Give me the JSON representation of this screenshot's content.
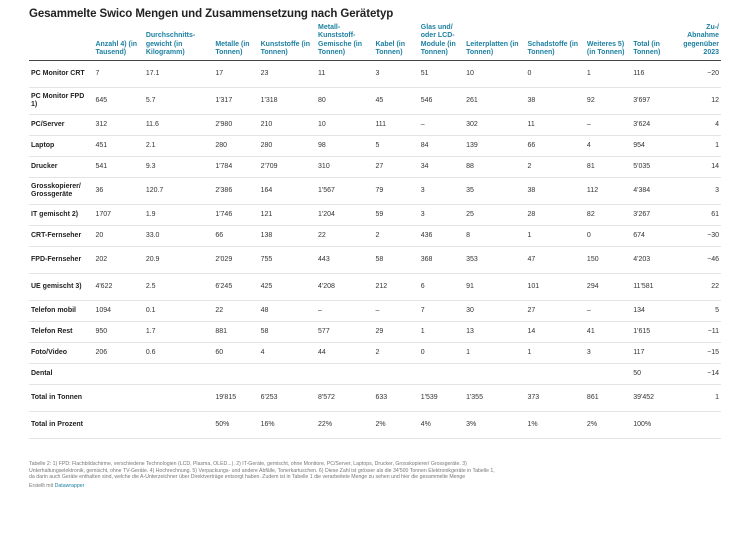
{
  "title": "Gesammelte Swico Mengen und Zusammensetzung nach Gerätetyp",
  "columns": [
    "",
    "Anzahl 4) (in Tausend)",
    "Durchschnitts-gewicht (in Kilogramm)",
    "Metalle (in Tonnen)",
    "Kunststoffe (in Tonnen)",
    "Metall-Kunststoff-Gemische (in Tonnen)",
    "Kabel (in Tonnen)",
    "Glas und/ oder LCD-Module (in Tonnen)",
    "Leiterplatten (in Tonnen)",
    "Schadstoffe (in Tonnen)",
    "Weiteres 5) (in Tonnen)",
    "Total (in Tonnen)",
    "Zu-/ Abnahme gegenüber 2023"
  ],
  "rows": [
    [
      "PC Monitor CRT",
      "7",
      "17.1",
      "17",
      "23",
      "11",
      "3",
      "51",
      "10",
      "0",
      "1",
      "116",
      "−20"
    ],
    [
      "PC Monitor FPD 1)",
      "645",
      "5.7",
      "1'317",
      "1'318",
      "80",
      "45",
      "546",
      "261",
      "38",
      "92",
      "3'697",
      "12"
    ],
    [
      "PC/Server",
      "312",
      "11.6",
      "2'980",
      "210",
      "10",
      "111",
      "–",
      "302",
      "11",
      "–",
      "3'624",
      "4"
    ],
    [
      "Laptop",
      "451",
      "2.1",
      "280",
      "280",
      "98",
      "5",
      "84",
      "139",
      "66",
      "4",
      "954",
      "1"
    ],
    [
      "Drucker",
      "541",
      "9.3",
      "1'784",
      "2'709",
      "310",
      "27",
      "34",
      "88",
      "2",
      "81",
      "5'035",
      "14"
    ],
    [
      "Grosskopierer/ Grossgeräte",
      "36",
      "120.7",
      "2'386",
      "164",
      "1'567",
      "79",
      "3",
      "35",
      "38",
      "112",
      "4'384",
      "3"
    ],
    [
      "IT gemischt 2)",
      "1707",
      "1.9",
      "1'746",
      "121",
      "1'204",
      "59",
      "3",
      "25",
      "28",
      "82",
      "3'267",
      "61"
    ],
    [
      "CRT-Fernseher",
      "20",
      "33.0",
      "66",
      "138",
      "22",
      "2",
      "436",
      "8",
      "1",
      "0",
      "674",
      "−30"
    ],
    [
      "FPD-Fernseher",
      "202",
      "20.9",
      "2'029",
      "755",
      "443",
      "58",
      "368",
      "353",
      "47",
      "150",
      "4'203",
      "−46"
    ],
    [
      "UE gemischt 3)",
      "4'622",
      "2.5",
      "6'245",
      "425",
      "4'208",
      "212",
      "6",
      "91",
      "101",
      "294",
      "11'581",
      "22"
    ],
    [
      "Telefon mobil",
      "1094",
      "0.1",
      "22",
      "48",
      "–",
      "–",
      "7",
      "30",
      "27",
      "–",
      "134",
      "5"
    ],
    [
      "Telefon Rest",
      "950",
      "1.7",
      "881",
      "58",
      "577",
      "29",
      "1",
      "13",
      "14",
      "41",
      "1'615",
      "−11"
    ],
    [
      "Foto/Video",
      "206",
      "0.6",
      "60",
      "4",
      "44",
      "2",
      "0",
      "1",
      "1",
      "3",
      "117",
      "−15"
    ],
    [
      "Dental",
      "",
      "",
      "",
      "",
      "",
      "",
      "",
      "",
      "",
      "",
      "50",
      "−14"
    ],
    [
      "Total in Tonnen",
      "",
      "",
      "19'815",
      "6'253",
      "8'572",
      "633",
      "1'539",
      "1'355",
      "373",
      "861",
      "39'452",
      "1"
    ],
    [
      "Total in Prozent",
      "",
      "",
      "50%",
      "16%",
      "22%",
      "2%",
      "4%",
      "3%",
      "1%",
      "2%",
      "100%",
      ""
    ]
  ],
  "footnote": "Tabelle 2: 1) FPD: Flachbildschirme, verschiedene Technologien (LCD, Plasma, OLED...). 2) IT-Geräte, gemischt, ohne Monitore, PC/Server, Laptops, Drucker, Grosskopierer/ Grossgeräte. 3) Unterhaltungselektronik, gemischt, ohne TV-Geräte. 4) Hochrechnung. 5) Verpackungs- und andere Abfälle, Tonerkartuschen. 6) Diese Zahl ist grösser als die 34'500 Tonnen Elektronikgeräte in Tabelle 1, da darin auch Geräte enthalten sind, welche die A-Unterzeichner über Direktverträge entsorgt haben. Zudem ist in Tabelle 1 die verarbeitete Menge zu sehen und hier die gesammelte Menge",
  "credit_prefix": "Erstellt mit",
  "credit_tool": "Datawrapper"
}
